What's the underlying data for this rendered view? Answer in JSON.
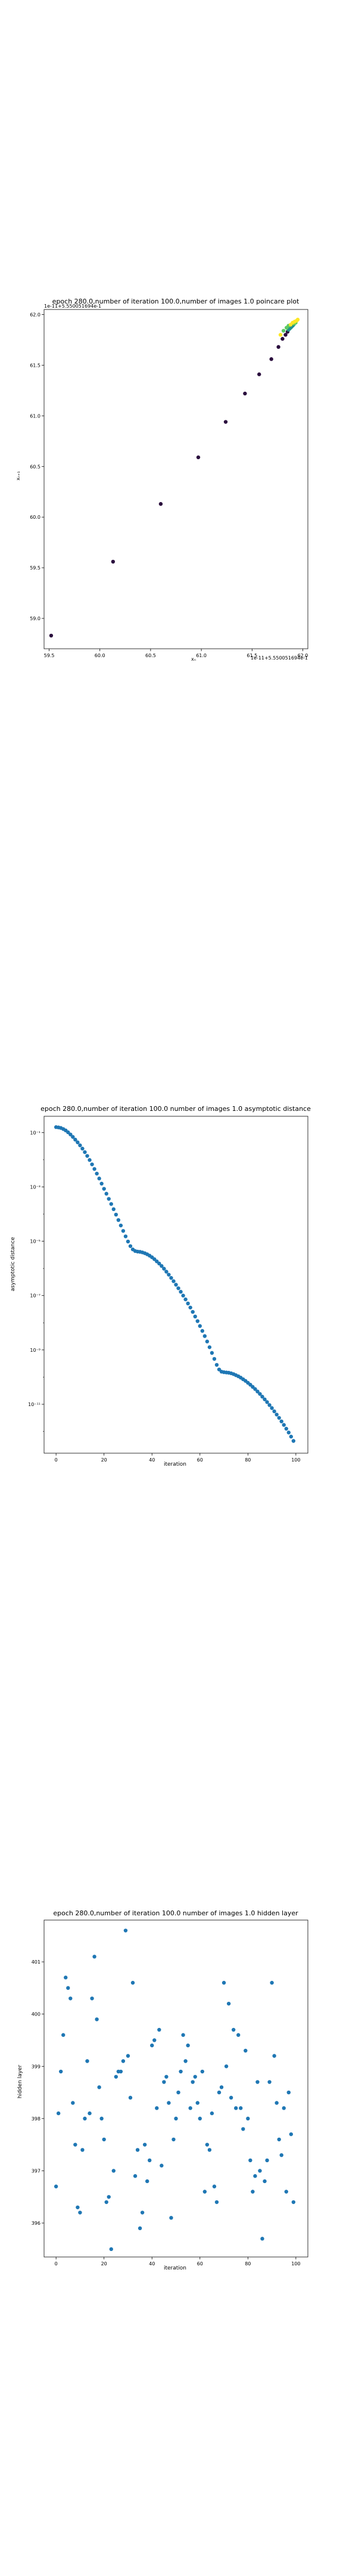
{
  "chart_data": [
    {
      "type": "scatter",
      "title": "epoch 280.0,number of iteration 100.0,number of images 1.0 poincare plot",
      "xlabel": "xₙ",
      "ylabel": "xₙ₊₁",
      "offset_x_text": "1e-11+5.550051694e-1",
      "offset_y_text": "1e-11+5.550051694e-1",
      "xlim": [
        59.45,
        62.05
      ],
      "ylim": [
        58.7,
        62.05
      ],
      "xticks": [
        59.5,
        60.0,
        60.5,
        61.0,
        61.5,
        62.0
      ],
      "yticks": [
        59.0,
        59.5,
        60.0,
        60.5,
        61.0,
        61.5,
        62.0
      ],
      "colormap": [
        "#440154",
        "#3b528b",
        "#21908d",
        "#5dc963",
        "#fde725"
      ],
      "points": [
        {
          "x": 59.52,
          "y": 58.83
        },
        {
          "x": 60.13,
          "y": 59.56
        },
        {
          "x": 60.6,
          "y": 60.13
        },
        {
          "x": 60.97,
          "y": 60.59
        },
        {
          "x": 61.24,
          "y": 60.94
        },
        {
          "x": 61.43,
          "y": 61.22
        },
        {
          "x": 61.57,
          "y": 61.41
        },
        {
          "x": 61.69,
          "y": 61.56
        },
        {
          "x": 61.76,
          "y": 61.68
        },
        {
          "x": 61.8,
          "y": 61.76
        },
        {
          "x": 61.83,
          "y": 61.8
        },
        {
          "x": 61.85,
          "y": 61.83
        },
        {
          "x": 61.86,
          "y": 61.85
        },
        {
          "x": 61.87,
          "y": 61.86
        },
        {
          "x": 61.88,
          "y": 61.87
        },
        {
          "x": 61.89,
          "y": 61.88
        },
        {
          "x": 61.9,
          "y": 61.89
        },
        {
          "x": 61.91,
          "y": 61.9
        },
        {
          "x": 61.915,
          "y": 61.91
        },
        {
          "x": 61.92,
          "y": 61.915
        },
        {
          "x": 61.93,
          "y": 61.92
        },
        {
          "x": 61.81,
          "y": 61.84
        },
        {
          "x": 61.84,
          "y": 61.87
        },
        {
          "x": 61.86,
          "y": 61.89
        },
        {
          "x": 61.88,
          "y": 61.9
        },
        {
          "x": 61.9,
          "y": 61.92
        },
        {
          "x": 61.92,
          "y": 61.93
        },
        {
          "x": 61.94,
          "y": 61.94
        },
        {
          "x": 61.95,
          "y": 61.95
        },
        {
          "x": 61.78,
          "y": 61.8
        }
      ]
    },
    {
      "type": "scatter",
      "title": "epoch 280.0,number of iteration 100.0  number of images 1.0 asymptotic distance",
      "xlabel": "iteration",
      "ylabel": "asymptotic distance",
      "y_scale": "log",
      "xlim": [
        -5,
        105
      ],
      "ylim_log10": [
        -12.8,
        -0.4
      ],
      "xticks": [
        0,
        20,
        40,
        60,
        80,
        100
      ],
      "ytick_labels": [
        "10⁻¹",
        "10⁻³",
        "10⁻⁵",
        "10⁻⁷",
        "10⁻⁹",
        "10⁻¹¹"
      ],
      "color": "#1f77b4",
      "x": [
        0,
        1,
        2,
        3,
        4,
        5,
        6,
        7,
        8,
        9,
        10,
        11,
        12,
        13,
        14,
        15,
        16,
        17,
        18,
        19,
        20,
        21,
        22,
        23,
        24,
        25,
        26,
        27,
        28,
        29,
        30,
        31,
        32,
        33,
        34,
        35,
        36,
        37,
        38,
        39,
        40,
        41,
        42,
        43,
        44,
        45,
        46,
        47,
        48,
        49,
        50,
        51,
        52,
        53,
        54,
        55,
        56,
        57,
        58,
        59,
        60,
        61,
        62,
        63,
        64,
        65,
        66,
        67,
        68,
        69,
        70,
        71,
        72,
        73,
        74,
        75,
        76,
        77,
        78,
        79,
        80,
        81,
        82,
        83,
        84,
        85,
        86,
        87,
        88,
        89,
        90,
        91,
        92,
        93,
        94,
        95,
        96,
        97,
        98,
        99
      ],
      "log10_y": [
        -0.8,
        -0.81,
        -0.83,
        -0.87,
        -0.92,
        -0.99,
        -1.07,
        -1.16,
        -1.26,
        -1.36,
        -1.47,
        -1.59,
        -1.72,
        -1.86,
        -2.01,
        -2.17,
        -2.34,
        -2.51,
        -2.69,
        -2.88,
        -3.07,
        -3.25,
        -3.44,
        -3.63,
        -3.82,
        -4.02,
        -4.22,
        -4.42,
        -4.62,
        -4.82,
        -5.01,
        -5.18,
        -5.3,
        -5.36,
        -5.38,
        -5.39,
        -5.41,
        -5.44,
        -5.48,
        -5.53,
        -5.59,
        -5.66,
        -5.74,
        -5.82,
        -5.91,
        -6.01,
        -6.12,
        -6.23,
        -6.35,
        -6.47,
        -6.6,
        -6.73,
        -6.86,
        -7.0,
        -7.14,
        -7.29,
        -7.44,
        -7.6,
        -7.77,
        -7.94,
        -8.12,
        -8.3,
        -8.49,
        -8.69,
        -8.9,
        -9.11,
        -9.33,
        -9.55,
        -9.72,
        -9.8,
        -9.82,
        -9.83,
        -9.84,
        -9.86,
        -9.89,
        -9.93,
        -9.97,
        -10.02,
        -10.08,
        -10.14,
        -10.21,
        -10.28,
        -10.36,
        -10.44,
        -10.53,
        -10.62,
        -10.72,
        -10.82,
        -10.92,
        -11.03,
        -11.14,
        -11.26,
        -11.38,
        -11.5,
        -11.63,
        -11.76,
        -11.9,
        -12.04,
        -12.19,
        -12.35
      ]
    },
    {
      "type": "scatter",
      "title": "epoch 280.0,number of iteration 100.0  number of images 1.0 hidden layer",
      "xlabel": "iteration",
      "ylabel": "hidden layer",
      "xlim": [
        -5,
        105
      ],
      "ylim": [
        395.35,
        401.8
      ],
      "xticks": [
        0,
        20,
        40,
        60,
        80,
        100
      ],
      "yticks": [
        396,
        397,
        398,
        399,
        400,
        401
      ],
      "color": "#1f77b4",
      "x": [
        0,
        1,
        2,
        3,
        4,
        5,
        6,
        7,
        8,
        9,
        10,
        11,
        12,
        13,
        14,
        15,
        16,
        17,
        18,
        19,
        20,
        21,
        22,
        23,
        24,
        25,
        26,
        27,
        28,
        29,
        30,
        31,
        32,
        33,
        34,
        35,
        36,
        37,
        38,
        39,
        40,
        41,
        42,
        43,
        44,
        45,
        46,
        47,
        48,
        49,
        50,
        51,
        52,
        53,
        54,
        55,
        56,
        57,
        58,
        59,
        60,
        61,
        62,
        63,
        64,
        65,
        66,
        67,
        68,
        69,
        70,
        71,
        72,
        73,
        74,
        75,
        76,
        77,
        78,
        79,
        80,
        81,
        82,
        83,
        84,
        85,
        86,
        87,
        88,
        89,
        90,
        91,
        92,
        93,
        94,
        95,
        96,
        97,
        98,
        99
      ],
      "y": [
        396.7,
        398.1,
        398.9,
        399.6,
        400.7,
        400.5,
        400.3,
        398.3,
        397.5,
        396.3,
        396.2,
        397.4,
        398.0,
        399.1,
        398.1,
        400.3,
        401.1,
        399.9,
        398.6,
        398.0,
        397.6,
        396.4,
        396.5,
        395.5,
        397.0,
        398.8,
        398.9,
        398.9,
        399.1,
        401.6,
        399.2,
        398.4,
        400.6,
        396.9,
        397.4,
        395.9,
        396.2,
        397.5,
        396.8,
        397.2,
        399.4,
        399.5,
        398.2,
        399.7,
        397.1,
        398.7,
        398.8,
        398.3,
        396.1,
        397.6,
        398.0,
        398.5,
        398.9,
        399.6,
        399.1,
        399.4,
        398.2,
        398.7,
        398.8,
        398.3,
        398.0,
        398.9,
        396.6,
        397.5,
        397.4,
        398.1,
        396.7,
        396.4,
        398.5,
        398.6,
        400.6,
        399.0,
        400.2,
        398.4,
        399.7,
        398.2,
        399.6,
        398.2,
        397.8,
        399.3,
        398.0,
        397.2,
        396.6,
        396.9,
        398.7,
        397.0,
        395.7,
        396.8,
        397.2,
        398.7,
        400.6,
        399.2,
        398.3,
        397.6,
        397.3,
        398.2,
        396.6,
        398.5,
        397.7,
        396.4
      ]
    }
  ]
}
